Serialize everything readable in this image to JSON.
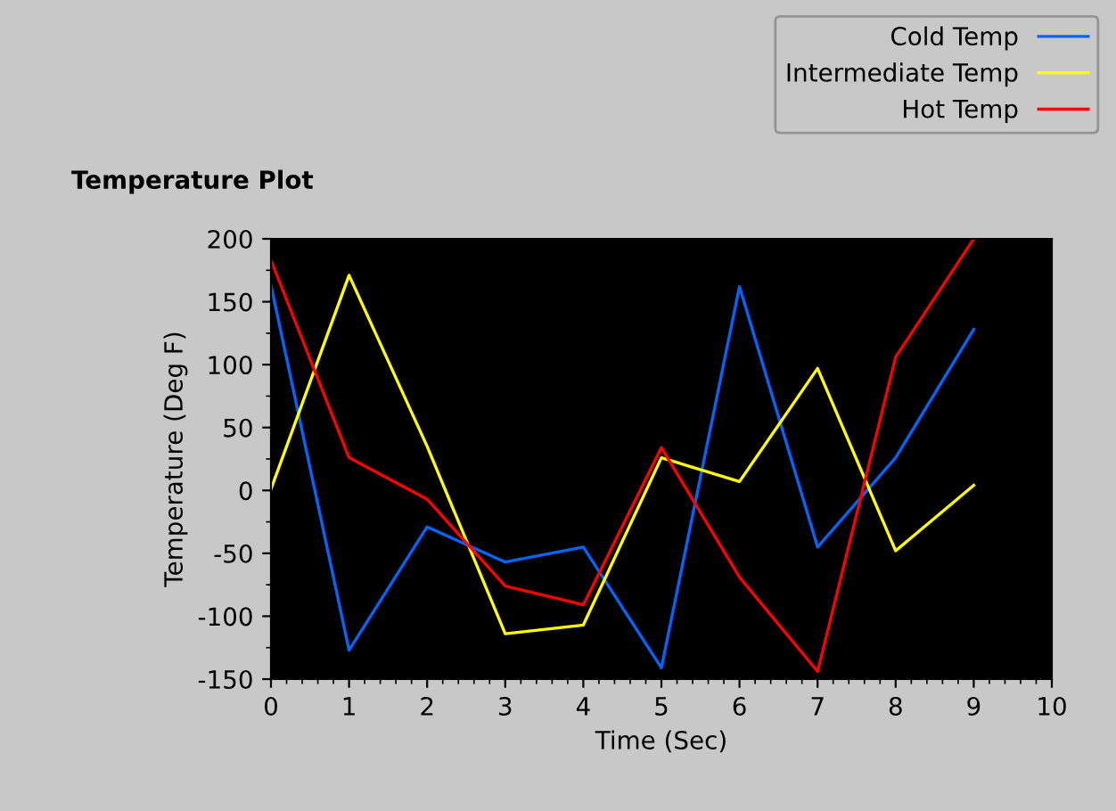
{
  "chart_data": {
    "type": "line",
    "title": "Temperature Plot",
    "xlabel": "Time (Sec)",
    "ylabel": "Temperature (Deg F)",
    "x": [
      0,
      1,
      2,
      3,
      4,
      5,
      6,
      7,
      8,
      9
    ],
    "series": [
      {
        "name": "Cold Temp",
        "color": "#0066ff",
        "values": [
          163,
          -127,
          -29,
          -57,
          -45,
          -141,
          162,
          -45,
          26,
          128
        ]
      },
      {
        "name": "Intermediate Temp",
        "color": "#ffff00",
        "values": [
          1,
          171,
          35,
          -114,
          -107,
          26,
          7,
          97,
          -48,
          4
        ]
      },
      {
        "name": "Hot Temp",
        "color": "#ff0000",
        "values": [
          183,
          26,
          -7,
          -76,
          -91,
          34,
          -69,
          -144,
          106,
          200
        ]
      }
    ],
    "xlim": [
      0,
      10
    ],
    "xticks": [
      0,
      1,
      2,
      3,
      4,
      5,
      6,
      7,
      8,
      9,
      10
    ],
    "ylim": [
      -150,
      200
    ],
    "yticks": [
      -150,
      -100,
      -50,
      0,
      50,
      100,
      150,
      200
    ],
    "grid": false,
    "legend": "top right",
    "marker": "none",
    "line_style": "solid"
  }
}
